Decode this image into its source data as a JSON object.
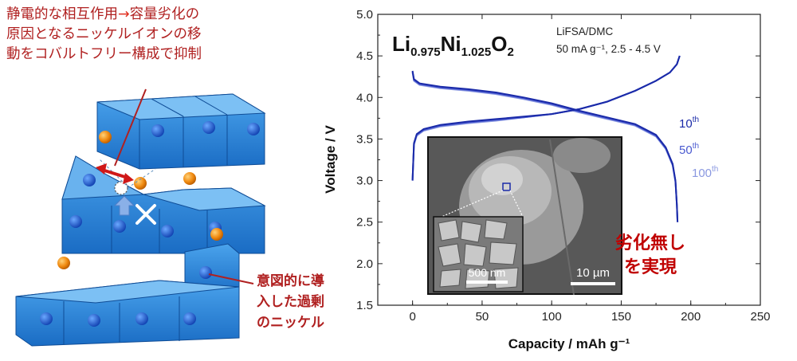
{
  "left_panel": {
    "caption_lines": [
      "静電的な相互作用",
      "→",
      "容量劣化の",
      "原因となるニッケルイオンの移",
      "動をコバルトフリー構成で抑制"
    ],
    "annotation_lines": [
      "意図的に導",
      "入した過剰",
      "のニッケル"
    ]
  },
  "chart_data": {
    "type": "line",
    "xlabel": "Capacity   /   mAh g⁻¹",
    "ylabel": "Voltage   /   V",
    "xlim": [
      -25,
      250
    ],
    "ylim": [
      1.5,
      5.0
    ],
    "xticks": [
      "0",
      "50",
      "100",
      "150",
      "200",
      "250"
    ],
    "yticks": [
      "1.5",
      "2.0",
      "2.5",
      "3.0",
      "3.5",
      "4.0",
      "4.5",
      "5.0"
    ],
    "formula": {
      "base": [
        "Li",
        "Ni",
        "O"
      ],
      "subs": [
        "0.975",
        "1.025",
        "2"
      ]
    },
    "conditions": [
      "LiFSA/DMC",
      "50 mA g⁻¹, 2.5 - 4.5 V"
    ],
    "grid": false,
    "series": [
      {
        "name": "10th",
        "color": "#1a2aa8",
        "charge": [
          [
            0,
            3.0
          ],
          [
            1,
            3.45
          ],
          [
            3,
            3.56
          ],
          [
            8,
            3.62
          ],
          [
            20,
            3.67
          ],
          [
            40,
            3.71
          ],
          [
            60,
            3.74
          ],
          [
            80,
            3.77
          ],
          [
            100,
            3.8
          ],
          [
            120,
            3.86
          ],
          [
            140,
            3.95
          ],
          [
            160,
            4.08
          ],
          [
            175,
            4.2
          ],
          [
            185,
            4.3
          ],
          [
            190,
            4.4
          ],
          [
            192,
            4.5
          ]
        ],
        "discharge": [
          [
            0,
            4.32
          ],
          [
            1,
            4.22
          ],
          [
            5,
            4.17
          ],
          [
            20,
            4.13
          ],
          [
            40,
            4.1
          ],
          [
            60,
            4.06
          ],
          [
            80,
            4.0
          ],
          [
            100,
            3.93
          ],
          [
            120,
            3.84
          ],
          [
            140,
            3.76
          ],
          [
            160,
            3.68
          ],
          [
            175,
            3.55
          ],
          [
            182,
            3.4
          ],
          [
            187,
            3.2
          ],
          [
            189,
            3.0
          ],
          [
            190,
            2.7
          ],
          [
            190.5,
            2.5
          ]
        ]
      },
      {
        "name": "50th",
        "color": "#4a5ad0",
        "charge": [
          [
            0,
            3.0
          ],
          [
            1,
            3.44
          ],
          [
            3,
            3.55
          ],
          [
            8,
            3.61
          ],
          [
            20,
            3.66
          ],
          [
            40,
            3.7
          ],
          [
            60,
            3.73
          ],
          [
            80,
            3.76
          ],
          [
            100,
            3.8
          ],
          [
            120,
            3.86
          ],
          [
            140,
            3.95
          ],
          [
            160,
            4.08
          ],
          [
            175,
            4.2
          ],
          [
            185,
            4.3
          ],
          [
            190,
            4.4
          ],
          [
            192,
            4.5
          ]
        ],
        "discharge": [
          [
            0,
            4.31
          ],
          [
            1,
            4.21
          ],
          [
            5,
            4.16
          ],
          [
            20,
            4.12
          ],
          [
            40,
            4.09
          ],
          [
            60,
            4.05
          ],
          [
            80,
            3.99
          ],
          [
            100,
            3.92
          ],
          [
            120,
            3.83
          ],
          [
            140,
            3.75
          ],
          [
            160,
            3.67
          ],
          [
            175,
            3.54
          ],
          [
            182,
            3.39
          ],
          [
            187,
            3.19
          ],
          [
            189,
            2.99
          ],
          [
            190,
            2.7
          ],
          [
            190.5,
            2.5
          ]
        ]
      },
      {
        "name": "100th",
        "color": "#8a98e0",
        "charge": [
          [
            0,
            3.0
          ],
          [
            1,
            3.43
          ],
          [
            3,
            3.54
          ],
          [
            8,
            3.6
          ],
          [
            20,
            3.65
          ],
          [
            40,
            3.69
          ],
          [
            60,
            3.72
          ],
          [
            80,
            3.76
          ],
          [
            100,
            3.8
          ],
          [
            120,
            3.86
          ],
          [
            140,
            3.95
          ],
          [
            160,
            4.08
          ],
          [
            175,
            4.2
          ],
          [
            185,
            4.3
          ],
          [
            190,
            4.4
          ],
          [
            192,
            4.5
          ]
        ],
        "discharge": [
          [
            0,
            4.3
          ],
          [
            1,
            4.2
          ],
          [
            5,
            4.15
          ],
          [
            20,
            4.11
          ],
          [
            40,
            4.08
          ],
          [
            60,
            4.04
          ],
          [
            80,
            3.98
          ],
          [
            100,
            3.91
          ],
          [
            120,
            3.82
          ],
          [
            140,
            3.74
          ],
          [
            160,
            3.66
          ],
          [
            175,
            3.53
          ],
          [
            182,
            3.38
          ],
          [
            187,
            3.18
          ],
          [
            189,
            2.98
          ],
          [
            190,
            2.7
          ],
          [
            190.5,
            2.5
          ]
        ]
      }
    ],
    "cycle_labels": [
      {
        "num": "10",
        "sup": "th",
        "color": "#1a2aa8"
      },
      {
        "num": "50",
        "sup": "th",
        "color": "#4a5ad0"
      },
      {
        "num": "100",
        "sup": "th",
        "color": "#8a98e0"
      }
    ],
    "inset": {
      "scale_large": "10 µm",
      "scale_small": "500 nm"
    },
    "annotation_lines": [
      "劣化無し",
      "を実現"
    ]
  }
}
